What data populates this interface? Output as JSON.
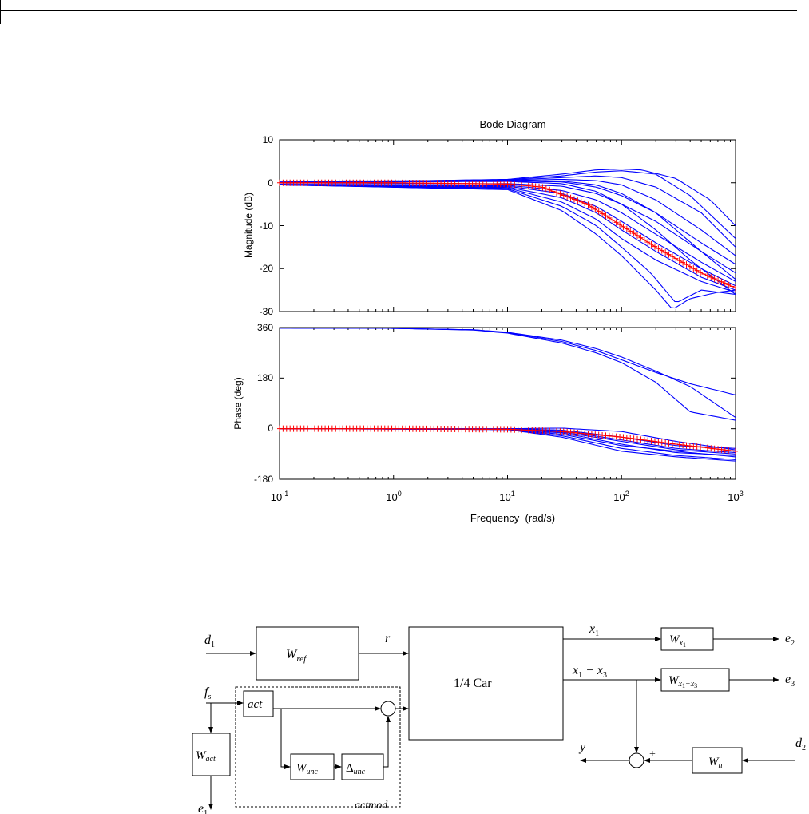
{
  "chart_data": {
    "type": "line",
    "title": "Bode Diagram",
    "xlabel": "Frequency  (rad/s)",
    "x_scale": "log",
    "xlim": [
      0.1,
      1000
    ],
    "x_tick_labels": [
      {
        "base": "10",
        "exp": "-1"
      },
      {
        "base": "10",
        "exp": "0"
      },
      {
        "base": "10",
        "exp": "1"
      },
      {
        "base": "10",
        "exp": "2"
      },
      {
        "base": "10",
        "exp": "3"
      }
    ],
    "grid": false,
    "legend": "none",
    "colors": {
      "samples": "#0000ff",
      "nominal": "#ff0000",
      "axes": "#000000"
    },
    "magnitude": {
      "ylabel": "Magnitude (dB)",
      "ylim": [
        -30,
        10
      ],
      "y_tick_labels": [
        "10",
        "0",
        "-10",
        "-20",
        "-30"
      ],
      "nominal": {
        "marker": "plus",
        "x": [
          0.1,
          1,
          10,
          20,
          50,
          100,
          200,
          500,
          1000
        ],
        "y": [
          0,
          0,
          -0.3,
          -1,
          -5,
          -10,
          -15,
          -21,
          -24.5
        ]
      },
      "samples": [
        {
          "x": [
            0.1,
            10,
            30,
            60,
            100,
            150,
            300,
            600,
            1000
          ],
          "y": [
            0,
            0.8,
            2,
            3,
            3.2,
            3,
            1,
            -4,
            -10
          ]
        },
        {
          "x": [
            0.1,
            10,
            30,
            60,
            100,
            200,
            400,
            1000
          ],
          "y": [
            0,
            0.7,
            1.6,
            2.5,
            2.8,
            2,
            -3,
            -13
          ]
        },
        {
          "x": [
            0.1,
            10,
            30,
            60,
            100,
            200,
            500,
            1000
          ],
          "y": [
            0,
            0.6,
            1.2,
            1.6,
            1.2,
            -1,
            -7,
            -15
          ]
        },
        {
          "x": [
            0.1,
            10,
            30,
            60,
            100,
            200,
            500,
            1000
          ],
          "y": [
            0,
            0.5,
            0.8,
            0.5,
            -0.5,
            -4,
            -11,
            -17
          ]
        },
        {
          "x": [
            0.1,
            10,
            30,
            60,
            100,
            200,
            500,
            1000
          ],
          "y": [
            0,
            0.4,
            0.2,
            -1,
            -3,
            -7,
            -14,
            -19
          ]
        },
        {
          "x": [
            0.1,
            10,
            30,
            60,
            100,
            200,
            500,
            1000
          ],
          "y": [
            -0.3,
            -0.2,
            -0.8,
            -2.5,
            -5,
            -9,
            -16,
            -21
          ]
        },
        {
          "x": [
            0.1,
            10,
            30,
            60,
            100,
            200,
            500,
            1000
          ],
          "y": [
            -0.5,
            -0.6,
            -1.8,
            -4,
            -7,
            -12,
            -18.5,
            -23
          ]
        },
        {
          "x": [
            0.1,
            10,
            30,
            60,
            100,
            200,
            500,
            1000
          ],
          "y": [
            -0.5,
            -0.8,
            -2.5,
            -5.5,
            -9,
            -14,
            -20,
            -24
          ]
        },
        {
          "x": [
            0.1,
            10,
            30,
            60,
            100,
            200,
            500,
            1000
          ],
          "y": [
            -0.5,
            -1,
            -3.5,
            -7,
            -11,
            -16,
            -22,
            -25
          ]
        },
        {
          "x": [
            0.1,
            10,
            30,
            60,
            100,
            200,
            500,
            1000
          ],
          "y": [
            -0.5,
            -1.2,
            -4.5,
            -8.5,
            -13,
            -18,
            -23,
            -25.5
          ]
        },
        {
          "x": [
            0.1,
            10,
            30,
            60,
            100,
            180,
            300,
            500,
            1000
          ],
          "y": [
            -0.5,
            -1.4,
            -5.5,
            -10,
            -15,
            -21,
            -28,
            -25,
            -26
          ]
        },
        {
          "x": [
            0.1,
            10,
            30,
            60,
            100,
            200,
            280,
            400,
            700,
            1000
          ],
          "y": [
            -0.5,
            -1.6,
            -6.5,
            -12,
            -17,
            -25,
            -29.5,
            -27,
            -25.5,
            -25
          ]
        },
        {
          "x": [
            0.1,
            10,
            30,
            60,
            100,
            200,
            500,
            1000
          ],
          "y": [
            0.4,
            0.5,
            0.4,
            -0.5,
            -2.5,
            -7,
            -16,
            -22.5
          ]
        },
        {
          "x": [
            0.1,
            10,
            30,
            60,
            100,
            200,
            400,
            1000
          ],
          "y": [
            0.2,
            0.3,
            -0.2,
            -2,
            -5,
            -11,
            -18,
            -26
          ]
        }
      ]
    },
    "phase": {
      "ylabel": "Phase (deg)",
      "ylim": [
        -180,
        360
      ],
      "y_tick_labels": [
        "360",
        "180",
        "0",
        "-180"
      ],
      "nominal": {
        "marker": "plus",
        "x": [
          0.1,
          1,
          10,
          30,
          100,
          300,
          1000
        ],
        "y": [
          0,
          0,
          -2,
          -10,
          -30,
          -55,
          -80
        ]
      },
      "samples": [
        {
          "x": [
            0.1,
            1,
            5,
            10,
            30,
            60,
            100,
            200,
            400,
            1000
          ],
          "y": [
            358,
            357,
            352,
            343,
            315,
            285,
            255,
            205,
            150,
            40
          ]
        },
        {
          "x": [
            0.1,
            1,
            5,
            10,
            30,
            60,
            100,
            200,
            400,
            1000
          ],
          "y": [
            358,
            357,
            352,
            342,
            310,
            278,
            245,
            200,
            160,
            120
          ]
        },
        {
          "x": [
            0.1,
            1,
            5,
            10,
            30,
            60,
            100,
            200,
            400,
            1000
          ],
          "y": [
            358,
            357,
            351,
            340,
            305,
            270,
            235,
            165,
            60,
            30
          ]
        },
        {
          "x": [
            0.1,
            10,
            30,
            100,
            300,
            1000
          ],
          "y": [
            0,
            0,
            -5,
            -30,
            -60,
            -70
          ]
        },
        {
          "x": [
            0.1,
            10,
            30,
            100,
            300,
            1000
          ],
          "y": [
            0,
            -1,
            -8,
            -40,
            -70,
            -85
          ]
        },
        {
          "x": [
            0.1,
            10,
            30,
            100,
            300,
            1000
          ],
          "y": [
            0,
            -2,
            -15,
            -55,
            -85,
            -95
          ]
        },
        {
          "x": [
            0.1,
            10,
            30,
            100,
            300,
            1000
          ],
          "y": [
            0,
            -3,
            -25,
            -70,
            -95,
            -110
          ]
        },
        {
          "x": [
            0.1,
            10,
            30,
            100,
            300,
            1000
          ],
          "y": [
            0,
            -3,
            -30,
            -80,
            -100,
            -115
          ]
        },
        {
          "x": [
            0.1,
            10,
            30,
            100,
            300,
            1000
          ],
          "y": [
            0,
            -2,
            -20,
            -60,
            -80,
            -100
          ]
        },
        {
          "x": [
            0.1,
            10,
            30,
            100,
            300,
            1000
          ],
          "y": [
            0,
            0,
            2,
            -10,
            -45,
            -75
          ]
        },
        {
          "x": [
            0.1,
            10,
            30,
            100,
            300,
            1000
          ],
          "y": [
            0,
            -1,
            -12,
            -45,
            -75,
            -90
          ]
        }
      ]
    }
  },
  "block_diagram": {
    "blocks": {
      "wref": "W",
      "wref_sub": "ref",
      "car": "1/4 Car",
      "act": "act",
      "wunc": "W",
      "wunc_sub": "unc",
      "delta_unc": "Δ",
      "delta_unc_sub": "unc",
      "wact": "W",
      "wact_sub": "act",
      "wx1": "W",
      "wx1_sub": "x",
      "wx1_subsub": "1",
      "wx1x3": "W",
      "wx1x3_sub": "x",
      "wx1x3_subsub1": "1",
      "wx1x3_subdash": "−x",
      "wx1x3_subsub3": "3",
      "wn": "W",
      "wn_sub": "n"
    },
    "signals": {
      "d": "d",
      "d1_sub": "1",
      "r": "r",
      "f": "f",
      "fs_sub": "s",
      "e": "e",
      "e1_sub": "1",
      "e2_sub": "2",
      "e3_sub": "3",
      "x": "x",
      "x1_sub": "1",
      "x_minus": " − x",
      "x3_sub": "3",
      "y": "y",
      "d2_sub": "2",
      "plus": "+",
      "actmod": "actmod"
    }
  }
}
